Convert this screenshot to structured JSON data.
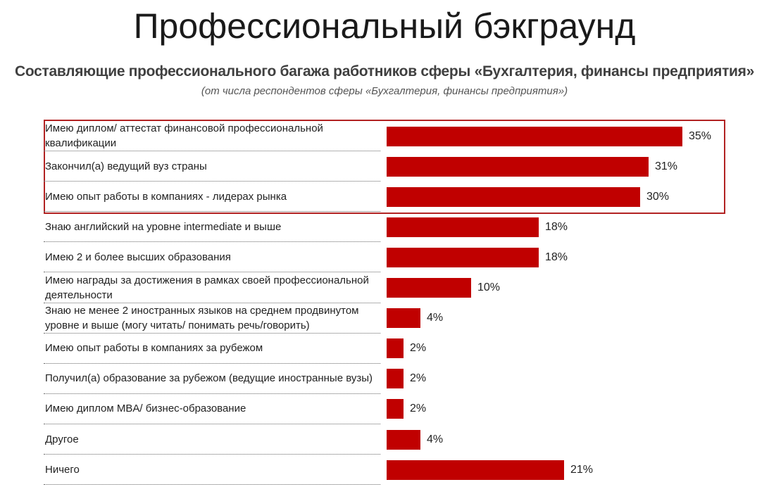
{
  "chart_data": {
    "type": "bar",
    "orientation": "horizontal",
    "title": "Профессиональный бэкграунд",
    "subtitle": "Составляющие профессионального багажа работников сферы «Бухгалтерия, финансы предприятия»",
    "note": "(от числа респондентов сферы «Бухгалтерия, финансы предприятия»)",
    "categories": [
      "Имею диплом/ аттестат финансовой профессиональной квалификации",
      "Закончил(а) ведущий вуз страны",
      "Имею опыт работы в компаниях - лидерах рынка",
      "Знаю английский на уровне intermediate и выше",
      "Имею 2 и более высших образования",
      "Имею награды за достижения в рамках своей профессиональной деятельности",
      "Знаю не менее 2 иностранных языков на среднем продвинутом уровне и выше (могу читать/ понимать речь/говорить)",
      "Имею опыт работы в компаниях за рубежом",
      "Получил(а) образование за рубежом (ведущие иностранные вузы)",
      "Имею диплом MBA/ бизнес-образование",
      "Другое",
      "Ничего"
    ],
    "values": [
      35,
      31,
      30,
      18,
      18,
      10,
      4,
      2,
      2,
      2,
      4,
      21
    ],
    "value_labels": [
      "35%",
      "31%",
      "30%",
      "18%",
      "18%",
      "10%",
      "4%",
      "2%",
      "2%",
      "2%",
      "4%",
      "21%"
    ],
    "color": "#c00000"
  }
}
